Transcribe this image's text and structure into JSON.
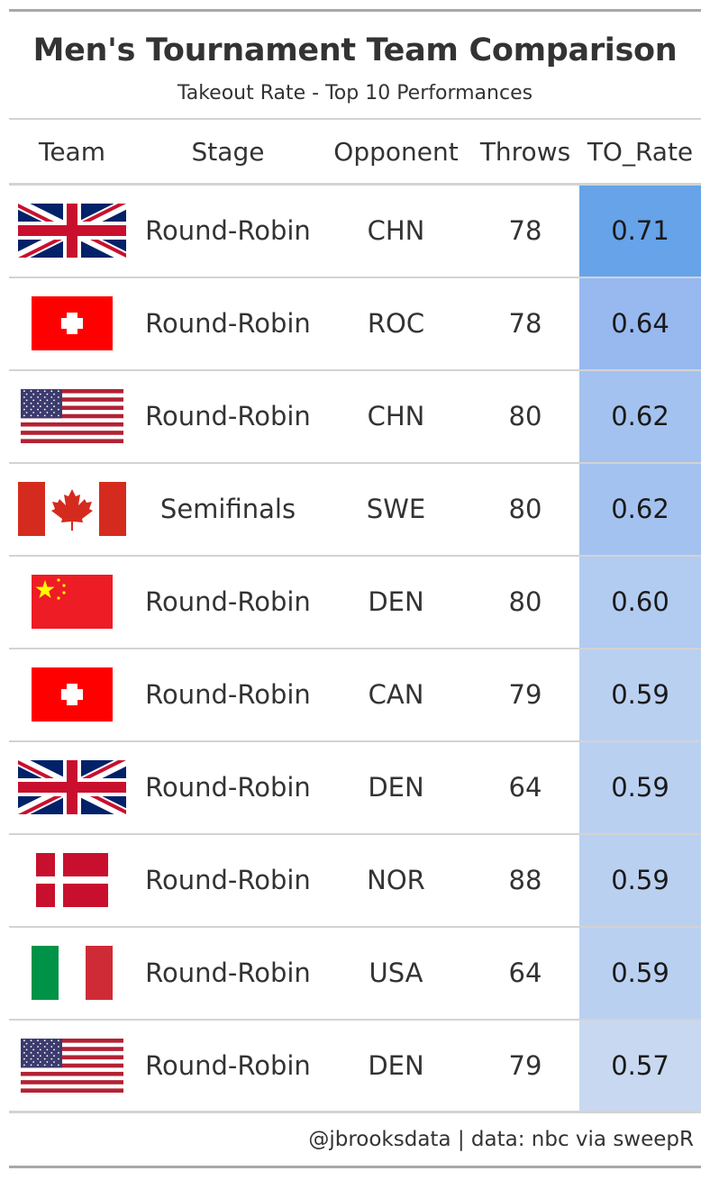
{
  "title": "Men's Tournament Team Comparison",
  "subtitle": "Takeout Rate - Top 10 Performances",
  "columns": [
    "Team",
    "Stage",
    "Opponent",
    "Throws",
    "TO_Rate"
  ],
  "rows": [
    {
      "flag": "uk-flag-icon",
      "stage": "Round-Robin",
      "opponent": "CHN",
      "throws": "78",
      "to_rate": "0.71",
      "rate_color": "#66a3e8"
    },
    {
      "flag": "switzerland-flag-icon",
      "stage": "Round-Robin",
      "opponent": "ROC",
      "throws": "78",
      "to_rate": "0.64",
      "rate_color": "#97b9ef"
    },
    {
      "flag": "usa-flag-icon",
      "stage": "Round-Robin",
      "opponent": "CHN",
      "throws": "80",
      "to_rate": "0.62",
      "rate_color": "#a4c2ef"
    },
    {
      "flag": "canada-flag-icon",
      "stage": "Semifinals",
      "opponent": "SWE",
      "throws": "80",
      "to_rate": "0.62",
      "rate_color": "#a4c2ef"
    },
    {
      "flag": "china-flag-icon",
      "stage": "Round-Robin",
      "opponent": "DEN",
      "throws": "80",
      "to_rate": "0.60",
      "rate_color": "#b2cbf0"
    },
    {
      "flag": "switzerland-flag-icon",
      "stage": "Round-Robin",
      "opponent": "CAN",
      "throws": "79",
      "to_rate": "0.59",
      "rate_color": "#bad0f0"
    },
    {
      "flag": "uk-flag-icon",
      "stage": "Round-Robin",
      "opponent": "DEN",
      "throws": "64",
      "to_rate": "0.59",
      "rate_color": "#bad0f0"
    },
    {
      "flag": "denmark-flag-icon",
      "stage": "Round-Robin",
      "opponent": "NOR",
      "throws": "88",
      "to_rate": "0.59",
      "rate_color": "#bad0f0"
    },
    {
      "flag": "italy-flag-icon",
      "stage": "Round-Robin",
      "opponent": "USA",
      "throws": "64",
      "to_rate": "0.59",
      "rate_color": "#bad0f0"
    },
    {
      "flag": "usa-flag-icon",
      "stage": "Round-Robin",
      "opponent": "DEN",
      "throws": "79",
      "to_rate": "0.57",
      "rate_color": "#c8d8f0"
    }
  ],
  "footer": "@jbrooksdata | data: nbc via sweepR"
}
